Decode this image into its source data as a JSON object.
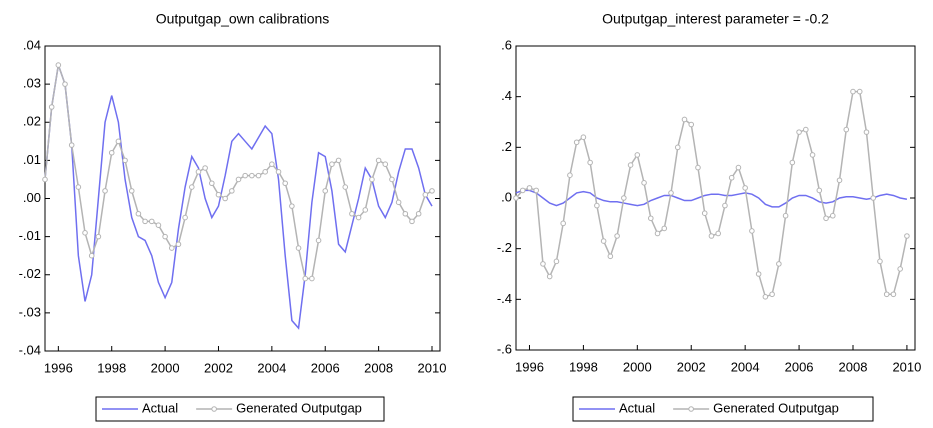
{
  "chart_data": [
    {
      "type": "line",
      "title": "Outputgap_own calibrations",
      "x": [
        1995.5,
        1995.75,
        1996,
        1996.25,
        1996.5,
        1996.75,
        1997,
        1997.25,
        1997.5,
        1997.75,
        1998,
        1998.25,
        1998.5,
        1998.75,
        1999,
        1999.25,
        1999.5,
        1999.75,
        2000,
        2000.25,
        2000.5,
        2000.75,
        2001,
        2001.25,
        2001.5,
        2001.75,
        2002,
        2002.25,
        2002.5,
        2002.75,
        2003,
        2003.25,
        2003.5,
        2003.75,
        2004,
        2004.25,
        2004.5,
        2004.75,
        2005,
        2005.25,
        2005.5,
        2005.75,
        2006,
        2006.25,
        2006.5,
        2006.75,
        2007,
        2007.25,
        2007.5,
        2007.75,
        2008,
        2008.25,
        2008.5,
        2008.75,
        2009,
        2009.25,
        2009.5,
        2009.75,
        2010
      ],
      "xlim": [
        1995.5,
        2010.3
      ],
      "xticks": [
        1996,
        1998,
        2000,
        2002,
        2004,
        2006,
        2008,
        2010
      ],
      "ylim": [
        -0.04,
        0.04
      ],
      "yticks": [
        {
          "value": 0.04,
          "label": ".04"
        },
        {
          "value": 0.03,
          "label": ".03"
        },
        {
          "value": 0.02,
          "label": ".02"
        },
        {
          "value": 0.01,
          "label": ".01"
        },
        {
          "value": 0,
          "label": ".00"
        },
        {
          "value": -0.01,
          "label": "-.01"
        },
        {
          "value": -0.02,
          "label": "-.02"
        },
        {
          "value": -0.03,
          "label": "-.03"
        },
        {
          "value": -0.04,
          "label": "-.04"
        }
      ],
      "legend": "bottom",
      "series": [
        {
          "name": "Actual",
          "color": "#6f6ff0",
          "values": [
            0.005,
            0.024,
            0.035,
            0.03,
            0.014,
            -0.015,
            -0.027,
            -0.02,
            0.0,
            0.02,
            0.027,
            0.02,
            0.005,
            -0.005,
            -0.01,
            -0.011,
            -0.015,
            -0.022,
            -0.026,
            -0.022,
            -0.008,
            0.003,
            0.011,
            0.008,
            0.0,
            -0.005,
            -0.002,
            0.006,
            0.015,
            0.017,
            0.015,
            0.013,
            0.016,
            0.019,
            0.017,
            0.005,
            -0.015,
            -0.032,
            -0.034,
            -0.02,
            -0.001,
            0.012,
            0.011,
            0.002,
            -0.012,
            -0.014,
            -0.007,
            0.0,
            0.008,
            0.005,
            -0.002,
            -0.005,
            -0.001,
            0.007,
            0.013,
            0.013,
            0.008,
            0.001,
            -0.002
          ]
        },
        {
          "name": "Generated Outputgap",
          "color": "#b4b4b4",
          "values": [
            0.005,
            0.024,
            0.035,
            0.03,
            0.014,
            0.003,
            -0.009,
            -0.015,
            -0.01,
            0.002,
            0.012,
            0.015,
            0.01,
            0.002,
            -0.004,
            -0.006,
            -0.006,
            -0.007,
            -0.01,
            -0.013,
            -0.012,
            -0.005,
            0.003,
            0.007,
            0.008,
            0.004,
            0.001,
            0.0,
            0.002,
            0.005,
            0.006,
            0.006,
            0.006,
            0.007,
            0.009,
            0.007,
            0.004,
            -0.002,
            -0.013,
            -0.021,
            -0.021,
            -0.011,
            0.002,
            0.009,
            0.01,
            0.003,
            -0.004,
            -0.005,
            -0.003,
            0.005,
            0.01,
            0.009,
            0.005,
            -0.001,
            -0.004,
            -0.006,
            -0.004,
            0.001,
            0.002
          ],
          "markers": true
        }
      ]
    },
    {
      "type": "line",
      "title": "Outputgap_interest parameter = -0.2",
      "x": [
        1995.5,
        1995.75,
        1996,
        1996.25,
        1996.5,
        1996.75,
        1997,
        1997.25,
        1997.5,
        1997.75,
        1998,
        1998.25,
        1998.5,
        1998.75,
        1999,
        1999.25,
        1999.5,
        1999.75,
        2000,
        2000.25,
        2000.5,
        2000.75,
        2001,
        2001.25,
        2001.5,
        2001.75,
        2002,
        2002.25,
        2002.5,
        2002.75,
        2003,
        2003.25,
        2003.5,
        2003.75,
        2004,
        2004.25,
        2004.5,
        2004.75,
        2005,
        2005.25,
        2005.5,
        2005.75,
        2006,
        2006.25,
        2006.5,
        2006.75,
        2007,
        2007.25,
        2007.5,
        2007.75,
        2008,
        2008.25,
        2008.5,
        2008.75,
        2009,
        2009.25,
        2009.5,
        2009.75,
        2010
      ],
      "xlim": [
        1995.5,
        2010.3
      ],
      "xticks": [
        1996,
        1998,
        2000,
        2002,
        2004,
        2006,
        2008,
        2010
      ],
      "ylim": [
        -0.6,
        0.6
      ],
      "yticks": [
        {
          "value": 0.6,
          "label": ".6"
        },
        {
          "value": 0.4,
          "label": ".4"
        },
        {
          "value": 0.2,
          "label": ".2"
        },
        {
          "value": 0,
          "label": ".0"
        },
        {
          "value": -0.2,
          "label": "-.2"
        },
        {
          "value": -0.4,
          "label": "-.4"
        },
        {
          "value": -0.6,
          "label": "-.6"
        }
      ],
      "legend": "bottom",
      "series": [
        {
          "name": "Actual",
          "color": "#6f6ff0",
          "values": [
            0.02,
            0.03,
            0.03,
            0.02,
            0.0,
            -0.02,
            -0.03,
            -0.02,
            0.0,
            0.02,
            0.025,
            0.02,
            0.0,
            -0.01,
            -0.015,
            -0.015,
            -0.02,
            -0.025,
            -0.03,
            -0.025,
            -0.01,
            0.0,
            0.01,
            0.01,
            0.0,
            -0.01,
            -0.01,
            0.0,
            0.01,
            0.015,
            0.015,
            0.01,
            0.01,
            0.015,
            0.02,
            0.015,
            0.0,
            -0.025,
            -0.035,
            -0.035,
            -0.02,
            0.0,
            0.01,
            0.01,
            0.0,
            -0.015,
            -0.02,
            -0.015,
            0.0,
            0.005,
            0.005,
            0.0,
            -0.005,
            0.0,
            0.01,
            0.015,
            0.01,
            0.0,
            -0.005
          ]
        },
        {
          "name": "Generated Outputgap",
          "color": "#b4b4b4",
          "values": [
            0.0,
            0.03,
            0.04,
            0.03,
            -0.26,
            -0.31,
            -0.25,
            -0.1,
            0.09,
            0.22,
            0.24,
            0.14,
            -0.03,
            -0.17,
            -0.23,
            -0.15,
            0.0,
            0.13,
            0.17,
            0.06,
            -0.08,
            -0.14,
            -0.12,
            0.02,
            0.2,
            0.31,
            0.29,
            0.12,
            -0.06,
            -0.15,
            -0.14,
            -0.03,
            0.08,
            0.12,
            0.04,
            -0.13,
            -0.3,
            -0.39,
            -0.38,
            -0.26,
            -0.07,
            0.14,
            0.26,
            0.27,
            0.17,
            0.03,
            -0.08,
            -0.07,
            0.07,
            0.27,
            0.42,
            0.42,
            0.26,
            0.0,
            -0.25,
            -0.38,
            -0.38,
            -0.28,
            -0.15
          ],
          "markers": true
        }
      ]
    }
  ]
}
